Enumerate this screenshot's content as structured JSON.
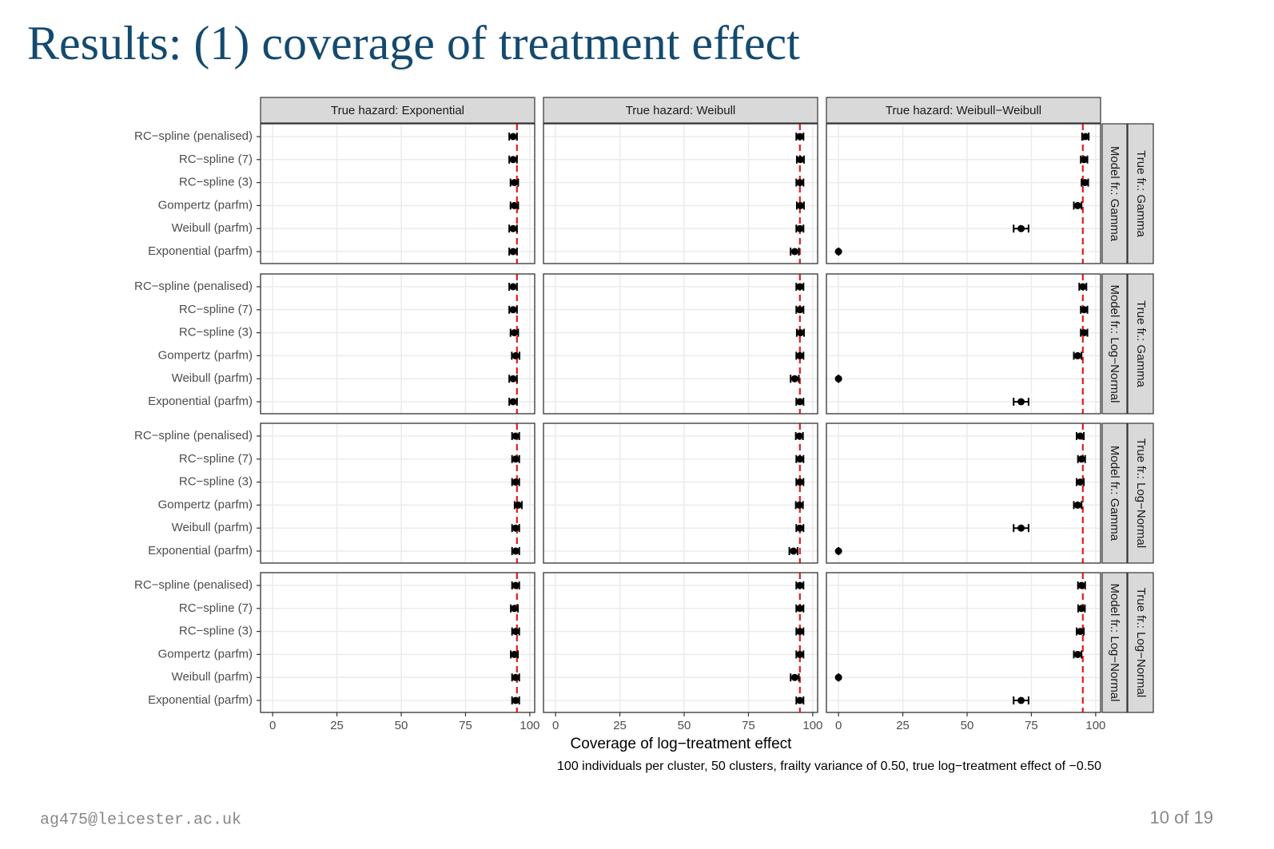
{
  "slide": {
    "title": "Results: (1) coverage of treatment effect",
    "footer": "ag475@leicester.ac.uk",
    "page": "10 of 19"
  },
  "chart_data": {
    "type": "errorbar",
    "xlabel": "Coverage of log−treatment effect",
    "caption": "100 individuals per cluster, 50 clusters, frailty variance of 0.50, true log−treatment effect of −0.50",
    "columns": [
      "True hazard: Exponential",
      "True hazard: Weibull",
      "True hazard: Weibull−Weibull"
    ],
    "rows": [
      {
        "model": "Model fr.: Gamma",
        "truth": "True fr.: Gamma"
      },
      {
        "model": "Model fr.: Log−Normal",
        "truth": "True fr.: Gamma"
      },
      {
        "model": "Model fr.: Gamma",
        "truth": "True fr.: Log−Normal"
      },
      {
        "model": "Model fr.: Log−Normal",
        "truth": "True fr.: Log−Normal"
      }
    ],
    "categories": [
      "RC−spline (penalised)",
      "RC−spline (7)",
      "RC−spline (3)",
      "Gompertz (parfm)",
      "Weibull (parfm)",
      "Exponential (parfm)"
    ],
    "xlim": [
      -4.7,
      101.9
    ],
    "xticks": [
      0,
      25,
      50,
      75,
      100
    ],
    "reference": 95,
    "reference_color": "#e41a1c",
    "color": "#000000",
    "grid": true,
    "panels": [
      [
        {
          "values": [
            93.5,
            93.5,
            94,
            94,
            93.5,
            93.5
          ],
          "errors": [
            1.5,
            1.5,
            1.5,
            1.5,
            1.5,
            1.5
          ]
        },
        {
          "values": [
            95,
            95.2,
            95,
            95.2,
            95,
            93
          ],
          "errors": [
            1.4,
            1.4,
            1.4,
            1.4,
            1.4,
            1.6
          ]
        },
        {
          "values": [
            96,
            95.5,
            95.8,
            93,
            71,
            0
          ],
          "errors": [
            1.3,
            1.3,
            1.3,
            1.5,
            2.9,
            0
          ]
        }
      ],
      [
        {
          "values": [
            93.5,
            93.5,
            94,
            94.5,
            93.5,
            93.5
          ],
          "errors": [
            1.5,
            1.5,
            1.5,
            1.5,
            1.5,
            1.5
          ]
        },
        {
          "values": [
            95,
            95,
            95.2,
            95,
            93,
            95
          ],
          "errors": [
            1.4,
            1.4,
            1.4,
            1.4,
            1.6,
            1.4
          ]
        },
        {
          "values": [
            95,
            95.5,
            95.5,
            93,
            0,
            71
          ],
          "errors": [
            1.4,
            1.3,
            1.3,
            1.5,
            0,
            2.9
          ]
        }
      ],
      [
        {
          "values": [
            94.5,
            94.5,
            94.5,
            95.5,
            94.5,
            94.5
          ],
          "errors": [
            1.4,
            1.4,
            1.4,
            1.4,
            1.4,
            1.4
          ]
        },
        {
          "values": [
            94.8,
            95,
            95,
            94.8,
            95,
            92.5
          ],
          "errors": [
            1.4,
            1.4,
            1.4,
            1.4,
            1.4,
            1.6
          ]
        },
        {
          "values": [
            94,
            94.5,
            94,
            93,
            71,
            0
          ],
          "errors": [
            1.4,
            1.4,
            1.4,
            1.5,
            2.9,
            0
          ]
        }
      ],
      [
        {
          "values": [
            94.5,
            94,
            94.5,
            94,
            94.5,
            94.5
          ],
          "errors": [
            1.4,
            1.4,
            1.4,
            1.4,
            1.4,
            1.4
          ]
        },
        {
          "values": [
            95,
            95,
            95,
            95,
            93,
            95
          ],
          "errors": [
            1.4,
            1.4,
            1.4,
            1.4,
            1.6,
            1.4
          ]
        },
        {
          "values": [
            94.5,
            94.5,
            94,
            93,
            0,
            71
          ],
          "errors": [
            1.4,
            1.3,
            1.4,
            1.5,
            0,
            2.9
          ]
        }
      ]
    ]
  }
}
